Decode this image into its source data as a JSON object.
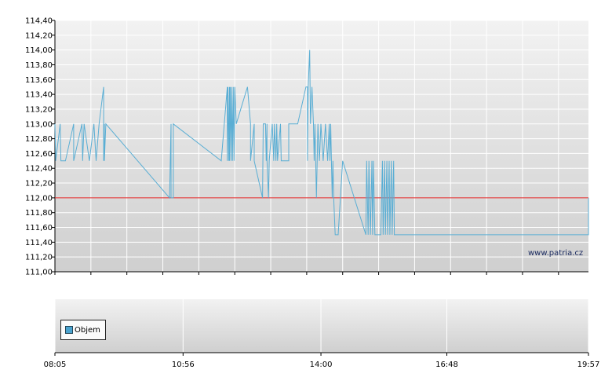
{
  "chart_data": [
    {
      "type": "line",
      "series": [
        {
          "values": [
            [
              "08:05",
              113.0
            ],
            [
              "08:06",
              112.5
            ],
            [
              "08:12",
              113.0
            ],
            [
              "08:13",
              112.5
            ],
            [
              "08:19",
              112.5
            ],
            [
              "08:30",
              113.0
            ],
            [
              "08:30",
              112.5
            ],
            [
              "08:41",
              113.0
            ],
            [
              "08:42",
              112.5
            ],
            [
              "08:44",
              113.0
            ],
            [
              "08:51",
              112.5
            ],
            [
              "08:57",
              113.0
            ],
            [
              "09:00",
              112.5
            ],
            [
              "09:04",
              113.0
            ],
            [
              "09:10",
              113.5
            ],
            [
              "09:10",
              112.5
            ],
            [
              "09:11",
              113.0
            ],
            [
              "09:11",
              112.5
            ],
            [
              "09:13",
              113.0
            ],
            [
              "10:38",
              112.0
            ],
            [
              "10:40",
              113.0
            ],
            [
              "10:40",
              112.0
            ],
            [
              "10:43",
              112.0
            ],
            [
              "10:43",
              113.0
            ],
            [
              "11:47",
              112.5
            ],
            [
              "11:55",
              113.5
            ],
            [
              "11:55",
              112.5
            ],
            [
              "11:56",
              113.5
            ],
            [
              "11:57",
              112.5
            ],
            [
              "11:58",
              113.5
            ],
            [
              "11:58",
              112.5
            ],
            [
              "11:59",
              113.5
            ],
            [
              "12:00",
              112.5
            ],
            [
              "12:01",
              113.5
            ],
            [
              "12:02",
              112.5
            ],
            [
              "12:03",
              113.5
            ],
            [
              "12:04",
              112.5
            ],
            [
              "12:05",
              113.5
            ],
            [
              "12:07",
              113.0
            ],
            [
              "12:22",
              113.5
            ],
            [
              "12:26",
              113.0
            ],
            [
              "12:26",
              112.5
            ],
            [
              "12:31",
              113.0
            ],
            [
              "12:31",
              112.5
            ],
            [
              "12:42",
              112.0
            ],
            [
              "12:43",
              113.0
            ],
            [
              "12:46",
              113.0
            ],
            [
              "12:47",
              112.5
            ],
            [
              "12:48",
              113.0
            ],
            [
              "12:48",
              112.5
            ],
            [
              "12:50",
              112.0
            ],
            [
              "12:51",
              112.5
            ],
            [
              "12:55",
              113.0
            ],
            [
              "12:57",
              112.5
            ],
            [
              "12:58",
              113.0
            ],
            [
              "13:00",
              112.5
            ],
            [
              "13:01",
              113.0
            ],
            [
              "13:02",
              112.5
            ],
            [
              "13:06",
              113.0
            ],
            [
              "13:07",
              112.5
            ],
            [
              "13:16",
              112.5
            ],
            [
              "13:17",
              112.5
            ],
            [
              "13:17",
              113.0
            ],
            [
              "13:29",
              113.0
            ],
            [
              "13:40",
              113.5
            ],
            [
              "13:42",
              113.5
            ],
            [
              "13:42",
              112.5
            ],
            [
              "13:43",
              113.5
            ],
            [
              "13:45",
              114.0
            ],
            [
              "13:46",
              113.0
            ],
            [
              "13:48",
              113.5
            ],
            [
              "13:50",
              113.0
            ],
            [
              "13:51",
              112.5
            ],
            [
              "13:52",
              113.0
            ],
            [
              "13:54",
              112.0
            ],
            [
              "13:56",
              113.0
            ],
            [
              "13:58",
              112.5
            ],
            [
              "14:00",
              113.0
            ],
            [
              "14:03",
              112.5
            ],
            [
              "14:06",
              113.0
            ],
            [
              "14:09",
              112.5
            ],
            [
              "14:11",
              113.0
            ],
            [
              "14:12",
              112.5
            ],
            [
              "14:13",
              113.0
            ],
            [
              "14:14",
              112.5
            ],
            [
              "14:15",
              112.0
            ],
            [
              "14:16",
              112.5
            ],
            [
              "14:17",
              112.0
            ],
            [
              "14:19",
              111.5
            ],
            [
              "14:23",
              111.5
            ],
            [
              "14:29",
              112.5
            ],
            [
              "15:00",
              111.5
            ],
            [
              "15:01",
              112.5
            ],
            [
              "15:03",
              111.5
            ],
            [
              "15:04",
              112.5
            ],
            [
              "15:06",
              111.5
            ],
            [
              "15:08",
              112.5
            ],
            [
              "15:09",
              111.5
            ],
            [
              "15:10",
              112.5
            ],
            [
              "15:12",
              111.5
            ],
            [
              "15:20",
              111.5
            ],
            [
              "15:22",
              112.5
            ],
            [
              "15:23",
              111.5
            ],
            [
              "15:25",
              112.5
            ],
            [
              "15:26",
              111.5
            ],
            [
              "15:28",
              112.5
            ],
            [
              "15:29",
              111.5
            ],
            [
              "15:31",
              112.5
            ],
            [
              "15:32",
              111.5
            ],
            [
              "15:34",
              112.5
            ],
            [
              "15:35",
              111.5
            ],
            [
              "15:37",
              112.5
            ],
            [
              "15:38",
              111.5
            ],
            [
              "19:57",
              111.5
            ],
            [
              "19:57",
              112.0
            ]
          ]
        }
      ],
      "reference_line": {
        "y": 112.0,
        "color": "#e02020"
      },
      "y_ticks": [
        "111,00",
        "111,20",
        "111,40",
        "111,60",
        "111,80",
        "112,00",
        "112,20",
        "112,40",
        "112,60",
        "112,80",
        "113,00",
        "113,20",
        "113,40",
        "113,60",
        "113,80",
        "114,00",
        "114,20",
        "114,40"
      ],
      "ylim": [
        111.0,
        114.4
      ],
      "grid": true,
      "line_color": "#5aaed4",
      "watermark": "www.patria.cz"
    },
    {
      "type": "bar",
      "legend": [
        "Objem"
      ],
      "legend_placement": "left",
      "legend_color": "#4aa3cf",
      "x_ticks": [
        "08:05",
        "10:56",
        "14:00",
        "16:48",
        "19:57"
      ],
      "grid": true
    }
  ]
}
